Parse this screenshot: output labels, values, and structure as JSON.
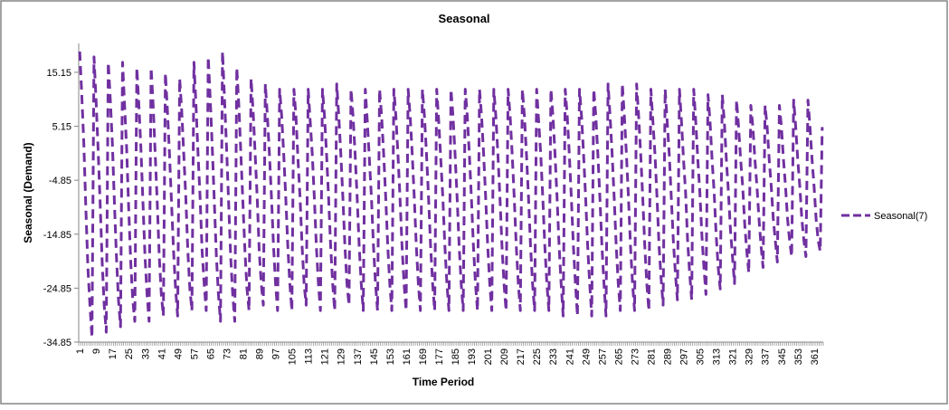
{
  "chart_data": {
    "type": "line",
    "title": "Seasonal",
    "xlabel": "Time Period",
    "ylabel": "Seasonal (Demand)",
    "ylim": [
      -34.85,
      20.5
    ],
    "yticks": [
      "15.15",
      "5.15",
      "-4.85",
      "-14.85",
      "-24.85",
      "-34.85"
    ],
    "ytick_values": [
      15.15,
      5.15,
      -4.85,
      -14.85,
      -24.85,
      -34.85
    ],
    "xticks": [
      "1",
      "9",
      "17",
      "25",
      "33",
      "41",
      "49",
      "57",
      "65",
      "73",
      "81",
      "89",
      "97",
      "105",
      "113",
      "121",
      "129",
      "137",
      "145",
      "153",
      "161",
      "169",
      "177",
      "185",
      "193",
      "201",
      "209",
      "217",
      "225",
      "233",
      "241",
      "249",
      "257",
      "265",
      "273",
      "281",
      "289",
      "297",
      "305",
      "313",
      "321",
      "329",
      "337",
      "345",
      "353",
      "361"
    ],
    "grid": false,
    "legend_position": "right",
    "series": [
      {
        "name": "Seasonal(7)",
        "color": "#7030A0",
        "style": "dashed",
        "values": [
          19,
          11,
          2,
          -10,
          -21,
          -28,
          -34,
          18,
          10,
          1,
          -9,
          -20,
          -28,
          -33,
          17,
          10,
          2,
          -9,
          -19,
          -27,
          -32,
          17,
          9,
          1,
          -10,
          -20,
          -27,
          -31,
          16,
          9,
          1,
          -9,
          -19,
          -26,
          -31,
          16,
          9,
          0,
          -9,
          -19,
          -26,
          -30,
          15,
          8,
          0,
          -9,
          -18,
          -25,
          -30,
          14,
          8,
          0,
          -8,
          -18,
          -25,
          -29,
          17,
          9,
          0,
          -8,
          -18,
          -24,
          -29,
          18,
          10,
          1,
          -9,
          -19,
          -26,
          -31,
          19,
          10,
          1,
          -9,
          -19,
          -26,
          -31,
          16,
          9,
          0,
          -9,
          -18,
          -25,
          -29,
          14,
          8,
          0,
          -8,
          -18,
          -24,
          -28,
          13,
          7,
          0,
          -8,
          -17,
          -24,
          -29,
          12,
          7,
          0,
          -8,
          -17,
          -24,
          -29,
          12,
          7,
          -1,
          -8,
          -17,
          -24,
          -28,
          12,
          6,
          0,
          -8,
          -17,
          -24,
          -29,
          12,
          7,
          0,
          -8,
          -17,
          -24,
          -29,
          13,
          7,
          0,
          -8,
          -17,
          -24,
          -28,
          12,
          7,
          0,
          -8,
          -17,
          -24,
          -29,
          12,
          6,
          -1,
          -8,
          -17,
          -24,
          -29,
          12,
          7,
          0,
          -8,
          -17,
          -24,
          -29,
          12,
          7,
          0,
          -8,
          -17,
          -24,
          -29,
          12,
          7,
          0,
          -8,
          -17,
          -24,
          -29,
          12,
          7,
          0,
          -8,
          -17,
          -24,
          -29,
          12,
          6,
          -1,
          -8,
          -17,
          -24,
          -29,
          12,
          7,
          0,
          -8,
          -17,
          -24,
          -29,
          12,
          7,
          0,
          -8,
          -17,
          -24,
          -29,
          12,
          7,
          0,
          -8,
          -17,
          -24,
          -29,
          12,
          7,
          0,
          -8,
          -17,
          -24,
          -29,
          12,
          7,
          0,
          -8,
          -17,
          -24,
          -29,
          12,
          7,
          0,
          -8,
          -17,
          -24,
          -29,
          12,
          6,
          0,
          -8,
          -17,
          -24,
          -29,
          12,
          7,
          0,
          -8,
          -17,
          -24,
          -30,
          12,
          7,
          0,
          -8,
          -17,
          -24,
          -30,
          12,
          7,
          0,
          -8,
          -17,
          -24,
          -30,
          12,
          7,
          0,
          -8,
          -17,
          -24,
          -30,
          13,
          7,
          0,
          -8,
          -17,
          -24,
          -29,
          13,
          7,
          0,
          -8,
          -17,
          -24,
          -29,
          13,
          7,
          0,
          -8,
          -17,
          -24,
          -29,
          12,
          6,
          0,
          -8,
          -17,
          -23,
          -28,
          12,
          6,
          0,
          -8,
          -16,
          -22,
          -27,
          12,
          6,
          -1,
          -7,
          -16,
          -22,
          -27,
          12,
          6,
          -1,
          -7,
          -15,
          -21,
          -26,
          11,
          6,
          -1,
          -7,
          -15,
          -21,
          -25,
          11,
          6,
          -1,
          -7,
          -14,
          -19,
          -24,
          10,
          5,
          -1,
          -6,
          -13,
          -18,
          -22,
          9,
          5,
          -1,
          -6,
          -12,
          -17,
          -21,
          9,
          5,
          -1,
          -6,
          -12,
          -16,
          -20,
          9,
          5,
          -1,
          -6,
          -12,
          -16,
          -19,
          10,
          5,
          -1,
          -6,
          -12,
          -16,
          -19,
          10,
          5,
          -1,
          -6,
          -12,
          -16,
          -18,
          5
        ]
      }
    ]
  }
}
